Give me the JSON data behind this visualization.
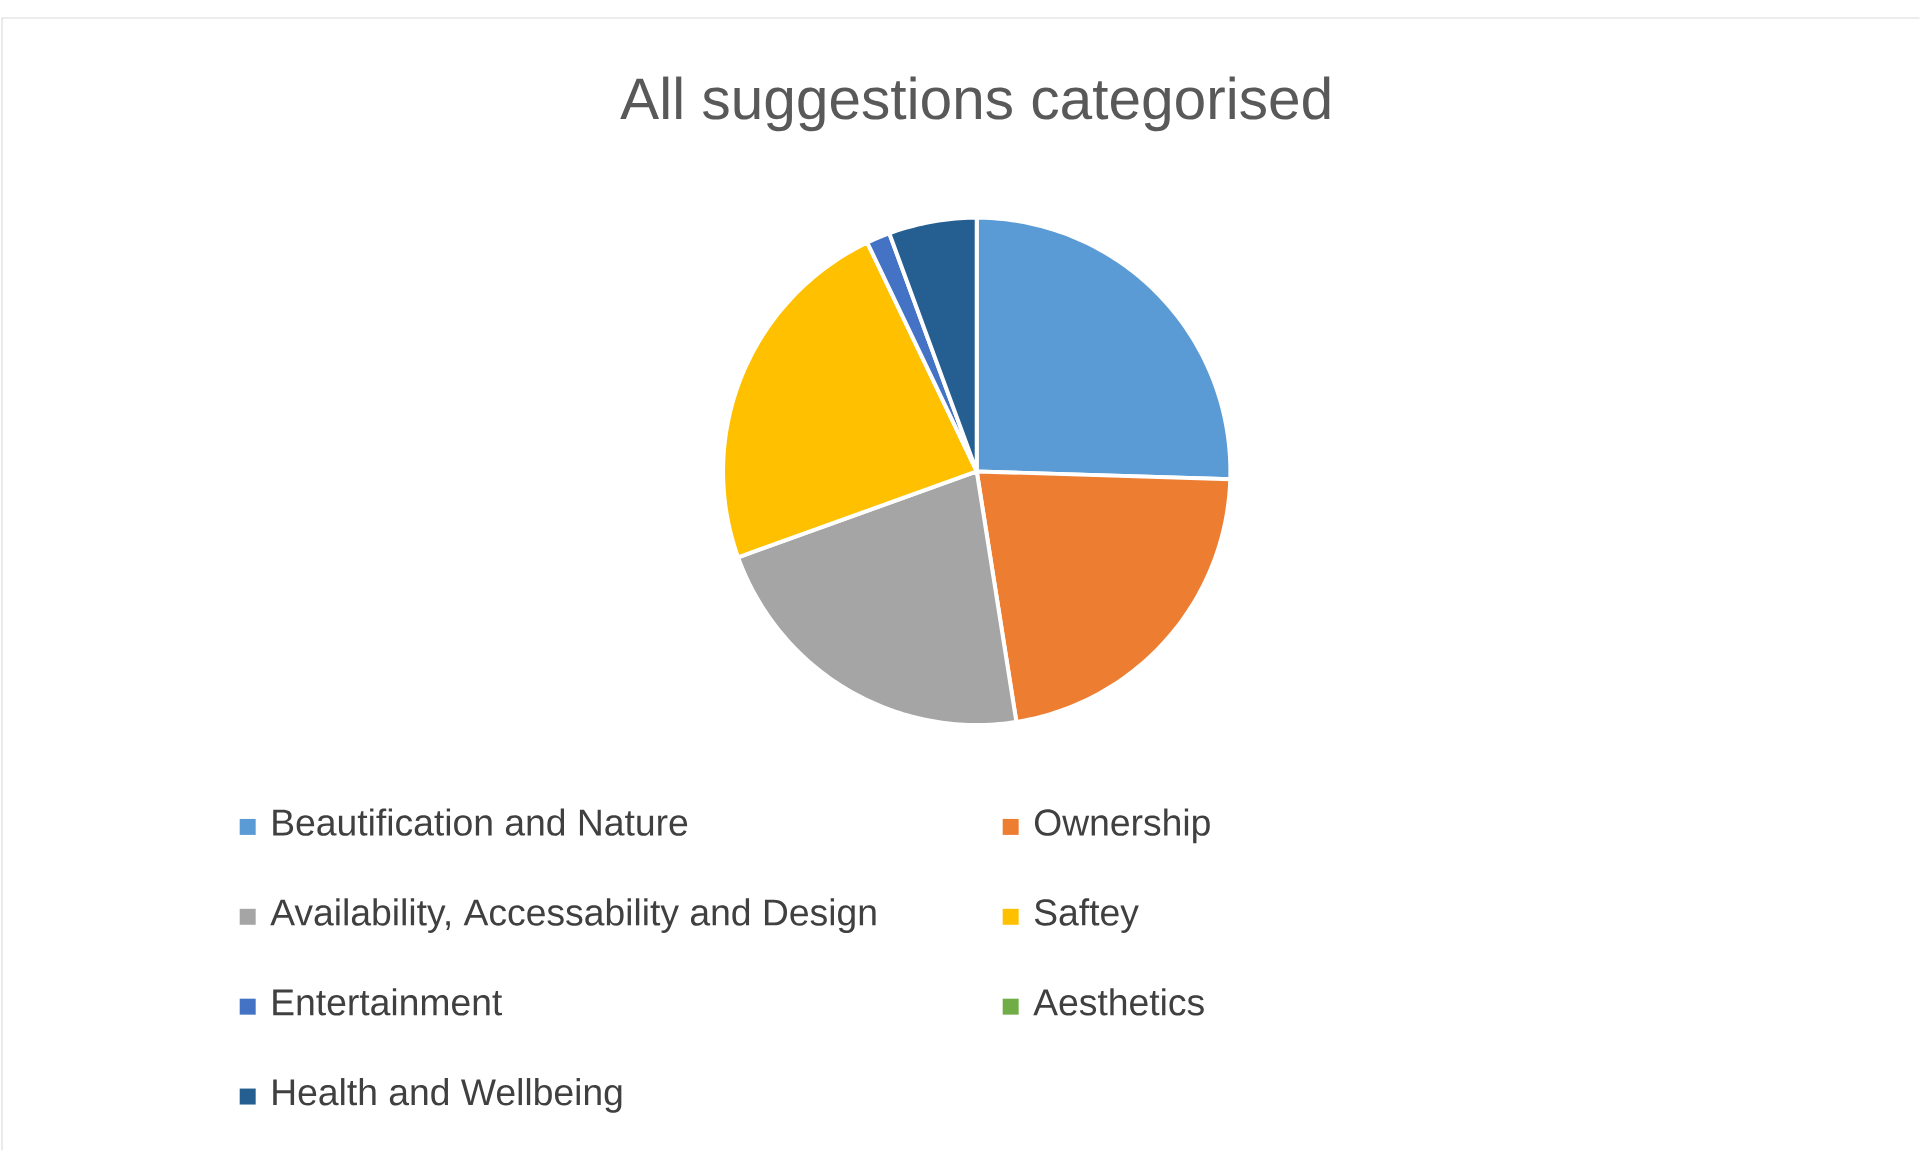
{
  "chart_data": {
    "type": "pie",
    "title": "All suggestions categorised",
    "categories": [
      "Beautification and Nature",
      "Ownership",
      "Availability, Accessability and Design",
      "Saftey",
      "Entertainment",
      "Aesthetics",
      "Health and Wellbeing"
    ],
    "values": [
      25.5,
      22,
      22,
      23.4,
      1.5,
      0,
      5.6
    ],
    "colors": [
      "#5b9bd5",
      "#ed7d31",
      "#a5a5a5",
      "#ffc000",
      "#4472c4",
      "#70ad47",
      "#255e91"
    ],
    "legend": "bottom"
  }
}
